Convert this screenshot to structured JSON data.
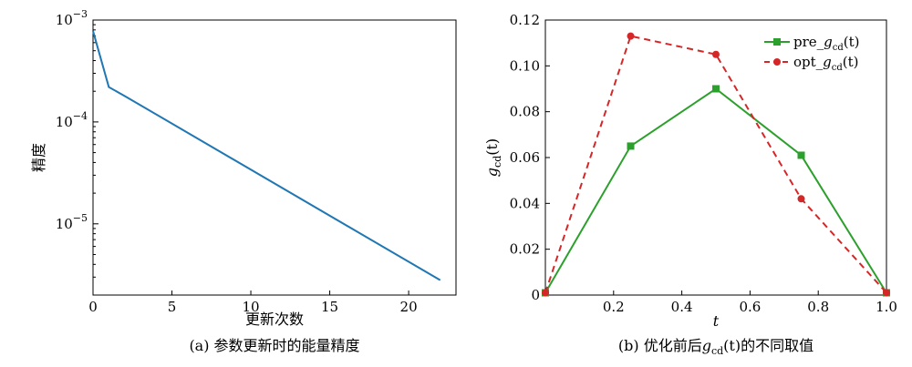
{
  "chart_data": [
    {
      "type": "line",
      "title": "",
      "caption_prefix": "(a) ",
      "caption": "参数更新时的能量精度",
      "xlabel": "更新次数",
      "ylabel": "精度",
      "yscale": "log",
      "xlim": [
        0,
        23
      ],
      "ylim": [
        2e-06,
        0.001
      ],
      "x_ticks": [
        0,
        5,
        10,
        15,
        20
      ],
      "y_ticks": [
        {
          "value": 0.001,
          "base": "10",
          "exp": "−3"
        },
        {
          "value": 0.0001,
          "base": "10",
          "exp": "−4"
        },
        {
          "value": 1e-05,
          "base": "10",
          "exp": "−5"
        }
      ],
      "grid": false,
      "series": [
        {
          "color": "#1f77b4",
          "x": [
            0,
            1,
            2,
            22
          ],
          "y": [
            0.00078,
            0.00022,
            0.00018,
            2.8e-06
          ]
        }
      ]
    },
    {
      "type": "line",
      "title": "",
      "caption_prefix": "(b) 优化前后",
      "caption_func": "g",
      "caption_sub": "cd",
      "caption_arg": "(t)",
      "caption_suffix": "的不同取值",
      "xlabel": "t",
      "ylabel_main": "g",
      "ylabel_sub": "cd",
      "ylabel_arg": "(t)",
      "xlim": [
        0,
        1.0
      ],
      "ylim": [
        0,
        0.12
      ],
      "x_ticks": [
        0.2,
        0.4,
        0.6,
        0.8,
        1.0
      ],
      "x_tick_labels": [
        "0.2",
        "0.4",
        "0.6",
        "0.8",
        "1.0"
      ],
      "y_ticks": [
        0,
        0.02,
        0.04,
        0.06,
        0.08,
        0.1,
        0.12
      ],
      "y_tick_labels": [
        "0",
        "0.02",
        "0.04",
        "0.06",
        "0.08",
        "0.10",
        "0.12"
      ],
      "grid": false,
      "legend_position": "top-right",
      "series": [
        {
          "name_prefix": "pre_",
          "name_func": "g",
          "name_sub": "cd",
          "name_arg": "(t)",
          "color": "#2ca02c",
          "marker": "square",
          "linestyle": "solid",
          "x": [
            0,
            0.25,
            0.5,
            0.75,
            1.0
          ],
          "y": [
            0.001,
            0.065,
            0.09,
            0.061,
            0.001
          ]
        },
        {
          "name_prefix": "opt_",
          "name_func": "g",
          "name_sub": "cd",
          "name_arg": "(t)",
          "color": "#d62728",
          "marker": "circle",
          "linestyle": "dashed",
          "x": [
            0,
            0.25,
            0.5,
            0.75,
            1.0
          ],
          "y": [
            0.001,
            0.113,
            0.105,
            0.042,
            0.001
          ]
        }
      ]
    }
  ]
}
